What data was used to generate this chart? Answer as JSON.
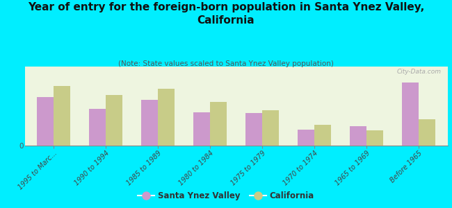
{
  "title": "Year of entry for the foreign-born population in Santa Ynez Valley,\nCalifornia",
  "subtitle": "(Note: State values scaled to Santa Ynez Valley population)",
  "categories": [
    "1995 to Marc...",
    "1990 to 1994",
    "1985 to 1989",
    "1980 to 1984",
    "1975 to 1979",
    "1970 to 1974",
    "1965 to 1969",
    "Before 1965"
  ],
  "santa_ynez_values": [
    55,
    42,
    52,
    38,
    37,
    18,
    22,
    72
  ],
  "california_values": [
    68,
    58,
    65,
    50,
    40,
    24,
    17,
    30
  ],
  "bar_color_ynez": "#cc99cc",
  "bar_color_ca": "#c8cc88",
  "background_color": "#00eeff",
  "plot_bg": "#eef5e0",
  "watermark": "City-Data.com",
  "legend_ynez": "Santa Ynez Valley",
  "legend_ca": "California",
  "title_fontsize": 11,
  "subtitle_fontsize": 7.5,
  "tick_fontsize": 7,
  "legend_fontsize": 8.5
}
